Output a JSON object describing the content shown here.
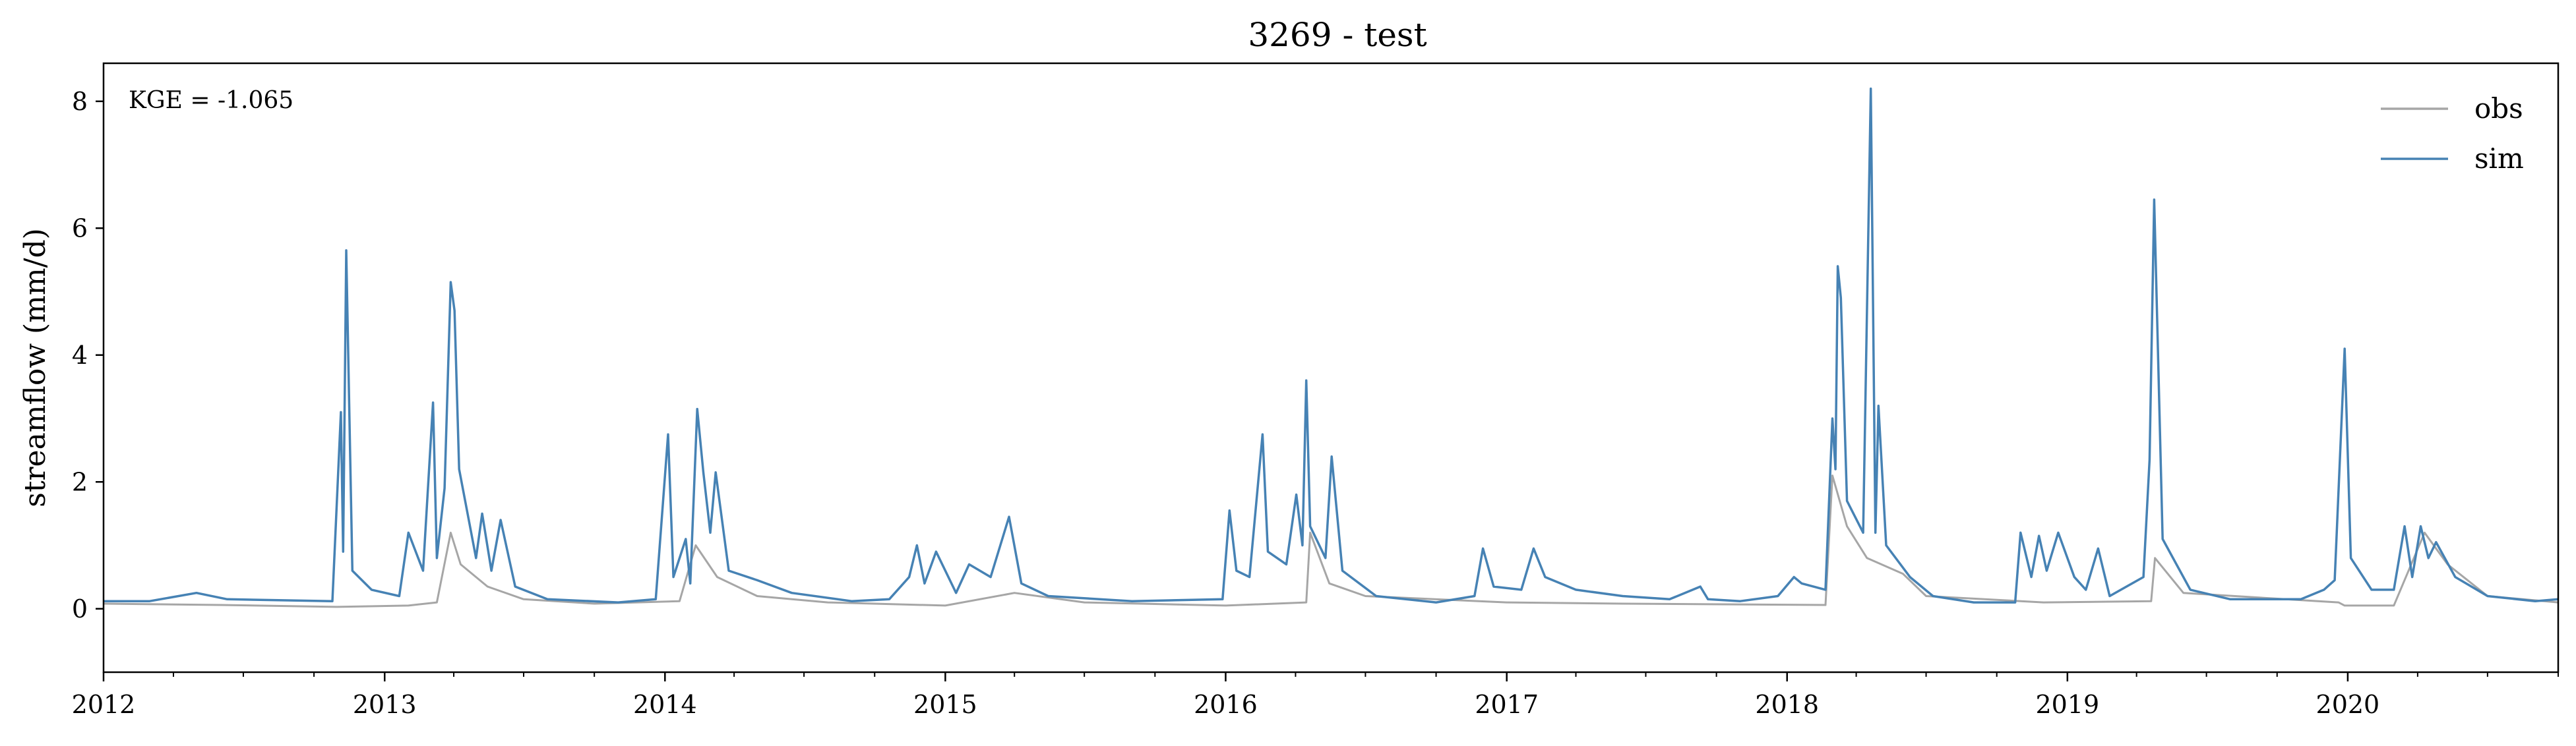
{
  "chart_data": {
    "type": "line",
    "title": "3269 - test",
    "xlabel": "",
    "ylabel": "streamflow (mm/d)",
    "annotation": "KGE = -1.065",
    "xlim": [
      "2012-01-01",
      "2020-10-01"
    ],
    "ylim": [
      -1,
      8.6
    ],
    "xticks": [
      "2012",
      "2013",
      "2014",
      "2015",
      "2016",
      "2017",
      "2018",
      "2019",
      "2020"
    ],
    "yticks": [
      "0",
      "2",
      "4",
      "6",
      "8"
    ],
    "legend": {
      "position": "top-right",
      "entries": [
        "obs",
        "sim"
      ]
    },
    "grid": false,
    "colors": {
      "obs": "#a6a6a6",
      "sim": "#4682b4"
    },
    "series": [
      {
        "name": "obs",
        "color": "#a6a6a6",
        "points": [
          [
            "2012-01-01",
            0.08
          ],
          [
            "2012-06-01",
            0.06
          ],
          [
            "2012-11-01",
            0.03
          ],
          [
            "2013-02-01",
            0.05
          ],
          [
            "2013-03-10",
            0.1
          ],
          [
            "2013-03-28",
            1.2
          ],
          [
            "2013-04-10",
            0.7
          ],
          [
            "2013-05-15",
            0.35
          ],
          [
            "2013-07-01",
            0.15
          ],
          [
            "2013-10-01",
            0.08
          ],
          [
            "2014-01-20",
            0.12
          ],
          [
            "2014-02-10",
            1.0
          ],
          [
            "2014-03-10",
            0.5
          ],
          [
            "2014-05-01",
            0.2
          ],
          [
            "2014-08-01",
            0.1
          ],
          [
            "2015-01-01",
            0.05
          ],
          [
            "2015-04-01",
            0.25
          ],
          [
            "2015-07-01",
            0.1
          ],
          [
            "2016-01-01",
            0.05
          ],
          [
            "2016-04-15",
            0.1
          ],
          [
            "2016-04-20",
            1.2
          ],
          [
            "2016-05-15",
            0.4
          ],
          [
            "2016-07-01",
            0.2
          ],
          [
            "2017-01-01",
            0.1
          ],
          [
            "2017-06-01",
            0.08
          ],
          [
            "2018-02-20",
            0.06
          ],
          [
            "2018-03-01",
            2.1
          ],
          [
            "2018-03-20",
            1.3
          ],
          [
            "2018-04-15",
            0.8
          ],
          [
            "2018-06-01",
            0.55
          ],
          [
            "2018-07-01",
            0.2
          ],
          [
            "2018-12-01",
            0.1
          ],
          [
            "2019-04-20",
            0.12
          ],
          [
            "2019-04-25",
            0.8
          ],
          [
            "2019-06-01",
            0.25
          ],
          [
            "2019-12-20",
            0.1
          ],
          [
            "2019-12-28",
            0.05
          ],
          [
            "2020-03-01",
            0.05
          ],
          [
            "2020-04-10",
            1.2
          ],
          [
            "2020-05-10",
            0.7
          ],
          [
            "2020-07-01",
            0.2
          ],
          [
            "2020-10-01",
            0.1
          ]
        ]
      },
      {
        "name": "sim",
        "color": "#4682b4",
        "points": [
          [
            "2012-01-01",
            0.12
          ],
          [
            "2012-03-01",
            0.12
          ],
          [
            "2012-05-01",
            0.25
          ],
          [
            "2012-06-10",
            0.15
          ],
          [
            "2012-10-25",
            0.12
          ],
          [
            "2012-11-05",
            3.1
          ],
          [
            "2012-11-08",
            0.9
          ],
          [
            "2012-11-12",
            5.65
          ],
          [
            "2012-11-20",
            0.6
          ],
          [
            "2012-12-15",
            0.3
          ],
          [
            "2013-01-20",
            0.2
          ],
          [
            "2013-02-01",
            1.2
          ],
          [
            "2013-02-20",
            0.6
          ],
          [
            "2013-03-05",
            3.25
          ],
          [
            "2013-03-10",
            0.8
          ],
          [
            "2013-03-20",
            1.9
          ],
          [
            "2013-03-28",
            5.15
          ],
          [
            "2013-04-02",
            4.7
          ],
          [
            "2013-04-08",
            2.2
          ],
          [
            "2013-04-30",
            0.8
          ],
          [
            "2013-05-08",
            1.5
          ],
          [
            "2013-05-20",
            0.6
          ],
          [
            "2013-06-01",
            1.4
          ],
          [
            "2013-06-20",
            0.35
          ],
          [
            "2013-08-01",
            0.15
          ],
          [
            "2013-11-01",
            0.1
          ],
          [
            "2013-12-20",
            0.15
          ],
          [
            "2014-01-05",
            2.75
          ],
          [
            "2014-01-12",
            0.5
          ],
          [
            "2014-01-28",
            1.1
          ],
          [
            "2014-02-03",
            0.4
          ],
          [
            "2014-02-12",
            3.15
          ],
          [
            "2014-02-20",
            2.15
          ],
          [
            "2014-03-01",
            1.2
          ],
          [
            "2014-03-08",
            2.15
          ],
          [
            "2014-03-25",
            0.6
          ],
          [
            "2014-05-01",
            0.45
          ],
          [
            "2014-06-15",
            0.25
          ],
          [
            "2014-09-01",
            0.12
          ],
          [
            "2014-10-20",
            0.15
          ],
          [
            "2014-11-15",
            0.5
          ],
          [
            "2014-11-25",
            1.0
          ],
          [
            "2014-12-05",
            0.4
          ],
          [
            "2014-12-20",
            0.9
          ],
          [
            "2015-01-15",
            0.25
          ],
          [
            "2015-02-01",
            0.7
          ],
          [
            "2015-03-01",
            0.5
          ],
          [
            "2015-03-25",
            1.45
          ],
          [
            "2015-04-10",
            0.4
          ],
          [
            "2015-05-15",
            0.2
          ],
          [
            "2015-09-01",
            0.12
          ],
          [
            "2015-12-28",
            0.15
          ],
          [
            "2016-01-06",
            1.55
          ],
          [
            "2016-01-15",
            0.6
          ],
          [
            "2016-02-01",
            0.5
          ],
          [
            "2016-02-18",
            2.75
          ],
          [
            "2016-02-25",
            0.9
          ],
          [
            "2016-03-20",
            0.7
          ],
          [
            "2016-04-02",
            1.8
          ],
          [
            "2016-04-10",
            1.0
          ],
          [
            "2016-04-15",
            3.6
          ],
          [
            "2016-04-20",
            1.3
          ],
          [
            "2016-05-10",
            0.8
          ],
          [
            "2016-05-18",
            2.4
          ],
          [
            "2016-06-01",
            0.6
          ],
          [
            "2016-07-15",
            0.2
          ],
          [
            "2016-10-01",
            0.1
          ],
          [
            "2016-11-20",
            0.2
          ],
          [
            "2016-12-01",
            0.95
          ],
          [
            "2016-12-15",
            0.35
          ],
          [
            "2017-01-20",
            0.3
          ],
          [
            "2017-02-05",
            0.95
          ],
          [
            "2017-02-20",
            0.5
          ],
          [
            "2017-04-01",
            0.3
          ],
          [
            "2017-06-01",
            0.2
          ],
          [
            "2017-08-01",
            0.15
          ],
          [
            "2017-09-10",
            0.35
          ],
          [
            "2017-09-20",
            0.15
          ],
          [
            "2017-11-01",
            0.12
          ],
          [
            "2017-12-20",
            0.2
          ],
          [
            "2018-01-10",
            0.5
          ],
          [
            "2018-01-20",
            0.4
          ],
          [
            "2018-02-20",
            0.3
          ],
          [
            "2018-03-01",
            3.0
          ],
          [
            "2018-03-05",
            2.2
          ],
          [
            "2018-03-08",
            5.4
          ],
          [
            "2018-03-12",
            4.9
          ],
          [
            "2018-03-20",
            1.7
          ],
          [
            "2018-04-10",
            1.2
          ],
          [
            "2018-04-20",
            8.2
          ],
          [
            "2018-04-26",
            1.2
          ],
          [
            "2018-04-30",
            3.2
          ],
          [
            "2018-05-10",
            1.0
          ],
          [
            "2018-06-10",
            0.5
          ],
          [
            "2018-07-10",
            0.2
          ],
          [
            "2018-09-01",
            0.1
          ],
          [
            "2018-10-25",
            0.1
          ],
          [
            "2018-11-01",
            1.2
          ],
          [
            "2018-11-15",
            0.5
          ],
          [
            "2018-11-25",
            1.15
          ],
          [
            "2018-12-05",
            0.6
          ],
          [
            "2018-12-20",
            1.2
          ],
          [
            "2019-01-10",
            0.5
          ],
          [
            "2019-01-25",
            0.3
          ],
          [
            "2019-02-10",
            0.95
          ],
          [
            "2019-02-25",
            0.2
          ],
          [
            "2019-04-10",
            0.5
          ],
          [
            "2019-04-18",
            2.35
          ],
          [
            "2019-04-24",
            6.45
          ],
          [
            "2019-05-05",
            1.1
          ],
          [
            "2019-06-10",
            0.3
          ],
          [
            "2019-08-01",
            0.15
          ],
          [
            "2019-11-01",
            0.15
          ],
          [
            "2019-12-01",
            0.3
          ],
          [
            "2019-12-15",
            0.45
          ],
          [
            "2019-12-28",
            4.1
          ],
          [
            "2020-01-05",
            0.8
          ],
          [
            "2020-02-01",
            0.3
          ],
          [
            "2020-03-01",
            0.3
          ],
          [
            "2020-03-15",
            1.3
          ],
          [
            "2020-03-25",
            0.5
          ],
          [
            "2020-04-05",
            1.3
          ],
          [
            "2020-04-15",
            0.8
          ],
          [
            "2020-04-25",
            1.05
          ],
          [
            "2020-05-20",
            0.5
          ],
          [
            "2020-07-01",
            0.2
          ],
          [
            "2020-09-01",
            0.12
          ],
          [
            "2020-10-01",
            0.15
          ]
        ]
      }
    ]
  }
}
